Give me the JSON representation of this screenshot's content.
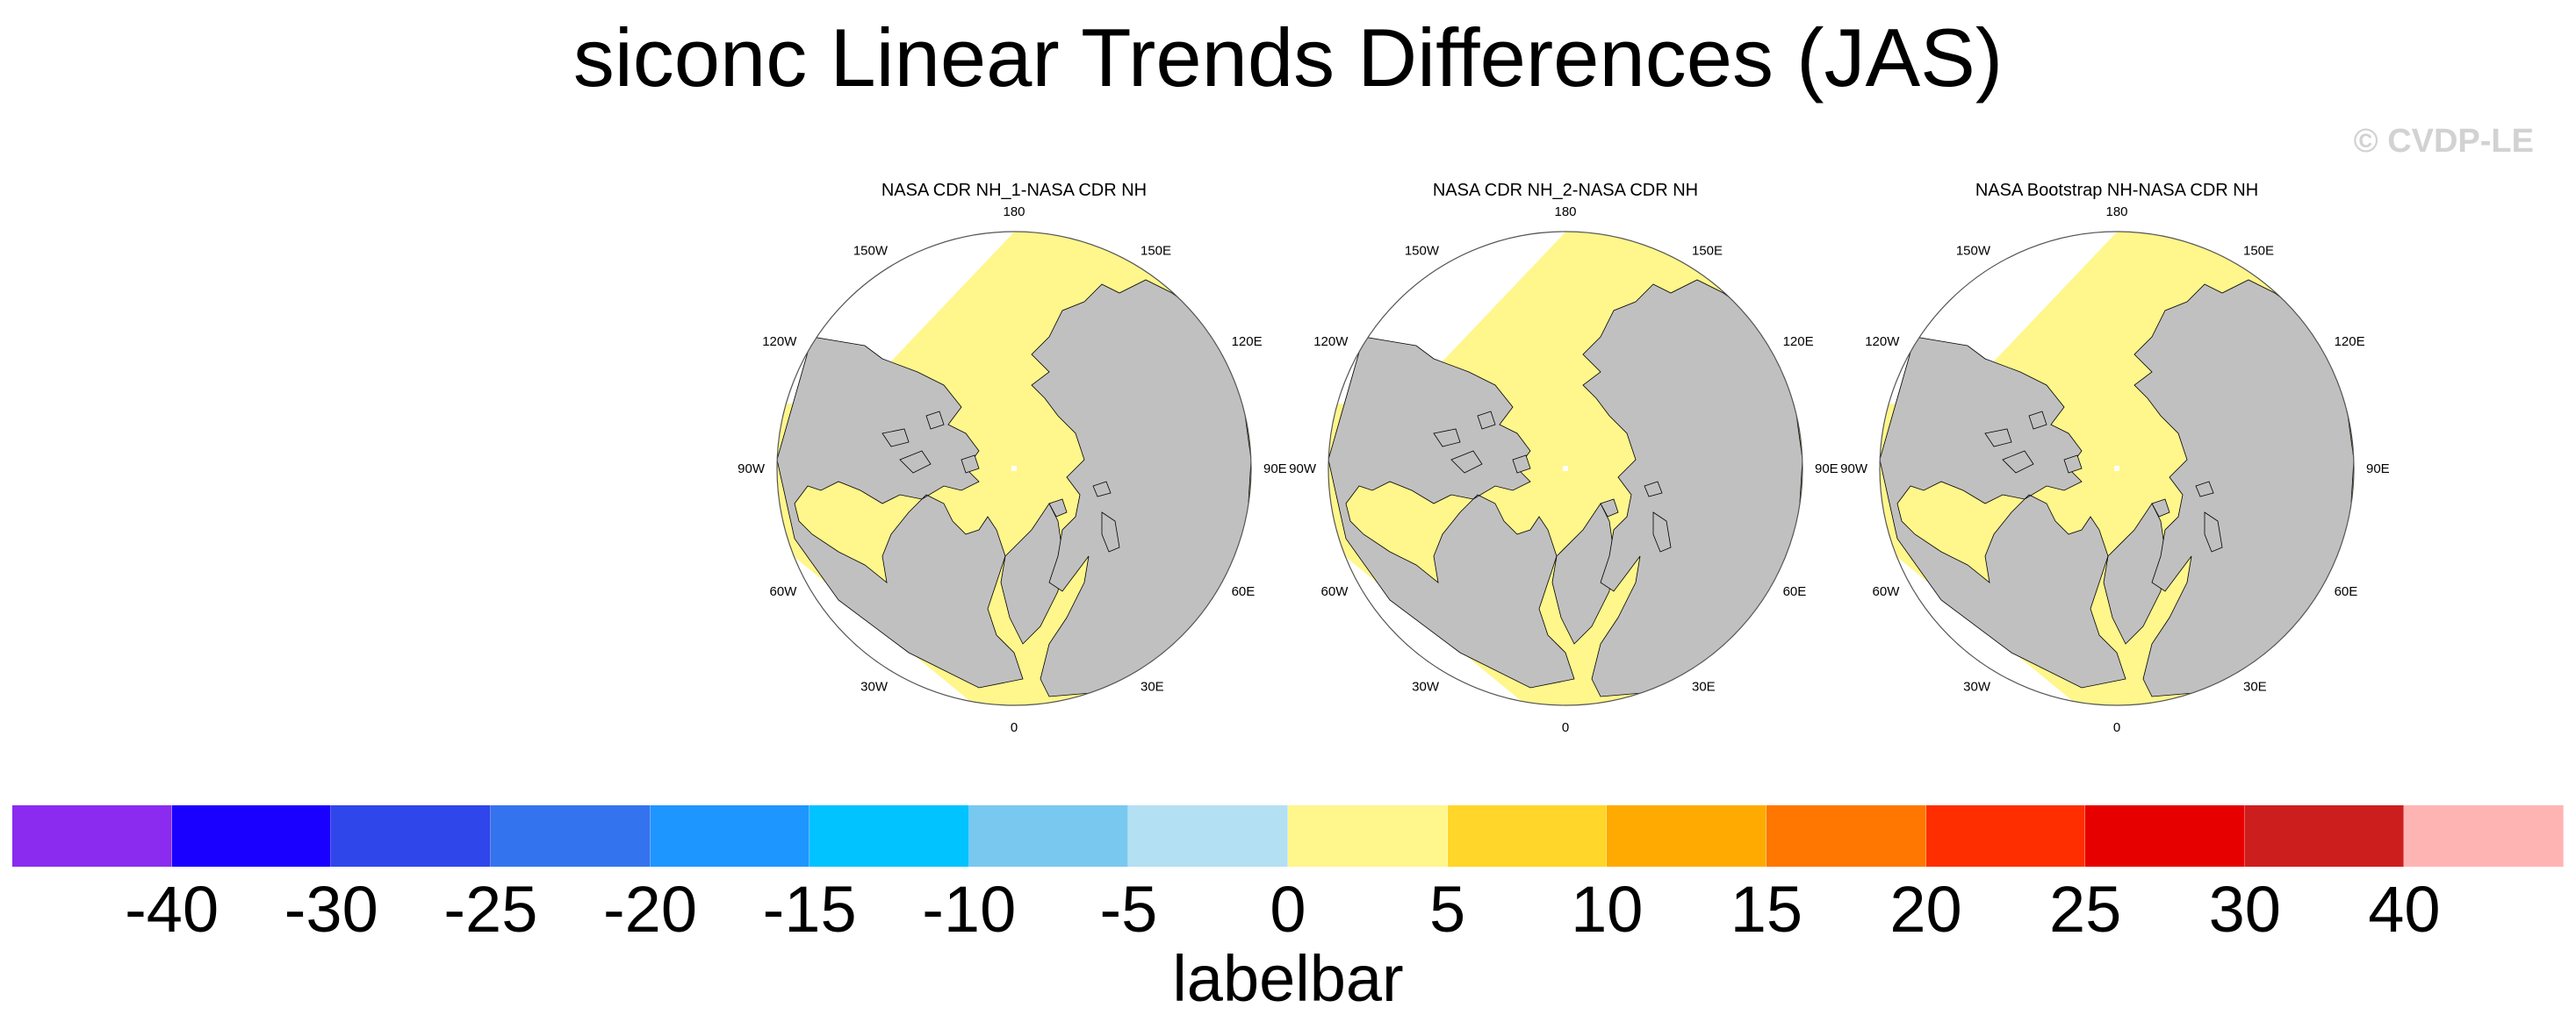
{
  "title": "siconc Linear Trends Differences (JAS)",
  "copyright": "© CVDP-LE",
  "maps": [
    {
      "title": "NASA CDR NH_1-NASA CDR NH"
    },
    {
      "title": "NASA CDR NH_2-NASA CDR NH"
    },
    {
      "title": "NASA Bootstrap NH-NASA CDR NH"
    }
  ],
  "lon_labels": {
    "top": "180",
    "bottom": "0",
    "upper_left": "150W",
    "upper_right": "150E",
    "left_upper": "120W",
    "right_upper": "120E",
    "left": "90W",
    "right": "90E",
    "left_lower": "60W",
    "right_lower": "60E",
    "lower_left": "30W",
    "lower_right": "30E"
  },
  "labelbar": {
    "title": "labelbar",
    "colors": [
      "#8B2BEF",
      "#1A00FF",
      "#2E46EA",
      "#3473EE",
      "#1E96FF",
      "#00C3FF",
      "#78C8F0",
      "#B4E0F3",
      "#FFF68C",
      "#FFD629",
      "#FFAA00",
      "#FF7700",
      "#FF2E00",
      "#E60000",
      "#CD1E1E",
      "#FFB4B4"
    ],
    "ticks": [
      "-40",
      "-30",
      "-25",
      "-20",
      "-15",
      "-10",
      "-5",
      "0",
      "5",
      "10",
      "15",
      "20",
      "25",
      "30",
      "40"
    ]
  },
  "fill_colors": {
    "land": "#C0C0C0",
    "trend_near_zero": "#FFF68C",
    "missing": "#FFFFFF"
  }
}
